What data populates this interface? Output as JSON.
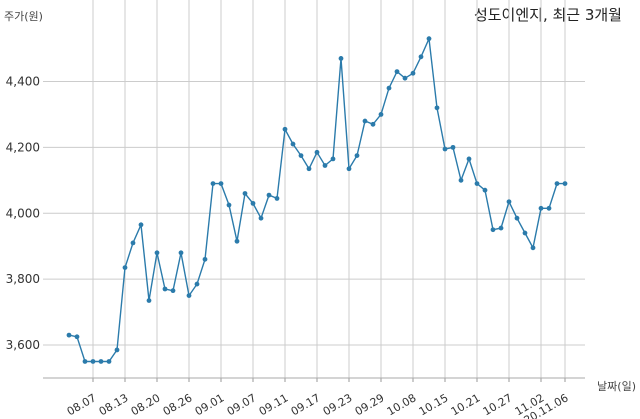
{
  "chart_data": {
    "type": "line",
    "title": "성도이엔지, 최근 3개월",
    "ylabel": "주가(원)",
    "xlabel": "날짜(일)",
    "ylim": [
      3500,
      4560
    ],
    "yticks": [
      3600,
      3800,
      4000,
      4200,
      4400
    ],
    "ytick_labels": [
      "3,600",
      "3,800",
      "4,000",
      "4,200",
      "4,400"
    ],
    "grid": true,
    "line_color": "#2b7bab",
    "x_tick_labels": [
      "08.07",
      "08.13",
      "08.20",
      "08.26",
      "09.01",
      "09.07",
      "09.11",
      "09.17",
      "09.23",
      "09.29",
      "10.08",
      "10.15",
      "10.21",
      "10.27",
      "11.02",
      "20.11.06"
    ],
    "x_tick_indices": [
      3,
      7,
      11,
      15,
      19,
      23,
      27,
      31,
      35,
      39,
      43,
      47,
      51,
      55,
      59,
      62
    ],
    "series": [
      {
        "values": [
          3630,
          3625,
          3550,
          3550,
          3550,
          3550,
          3585,
          3835,
          3910,
          3965,
          3735,
          3880,
          3770,
          3765,
          3880,
          3750,
          3785,
          3860,
          4090,
          4090,
          4025,
          3915,
          4060,
          4030,
          3985,
          4055,
          4045,
          4255,
          4210,
          4175,
          4135,
          4185,
          4145,
          4165,
          4470,
          4135,
          4175,
          4280,
          4270,
          4300,
          4380,
          4430,
          4410,
          4425,
          4475,
          4530,
          4320,
          4195,
          4200,
          4100,
          4165,
          4090,
          4070,
          3950,
          3955,
          4035,
          3985,
          3940,
          3895,
          4015,
          4015,
          4090,
          4090
        ]
      }
    ]
  }
}
